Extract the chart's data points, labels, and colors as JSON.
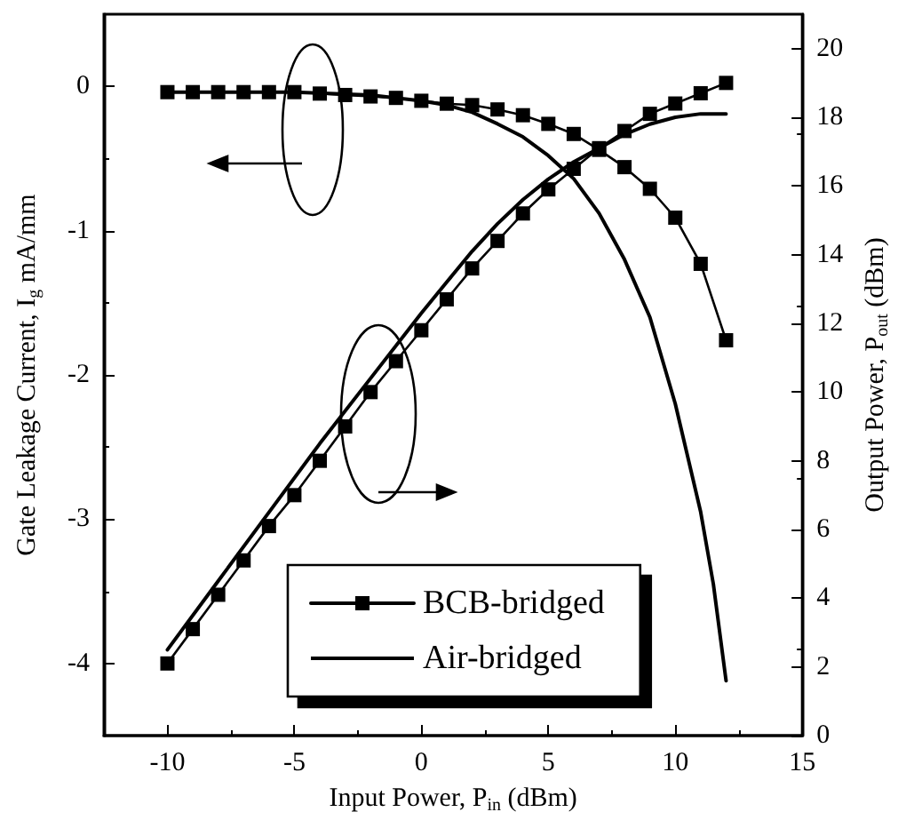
{
  "chart_data": {
    "type": "line",
    "xlabel": "Input Power, P$_{in}$ (dBm)",
    "ylabel": "Gate Leakage Current, I$_{g}$ mA/mm",
    "y2label": "Output Power, P$_{out}$ (dBm)",
    "xlim": [
      -12.5,
      15
    ],
    "xticks": [
      -10,
      -5,
      0,
      5,
      10,
      15
    ],
    "ylim": [
      -4.5,
      0.5
    ],
    "yticks": [
      -4,
      -3,
      -2,
      -1,
      0
    ],
    "y2lim": [
      0,
      21
    ],
    "y2ticks": [
      0,
      2,
      4,
      6,
      8,
      10,
      12,
      14,
      16,
      18,
      20
    ],
    "legend": "bottom",
    "grid": false,
    "line_style": "solid",
    "series": [
      {
        "name": "BCB-bridged",
        "color": "#000000",
        "marker": "square",
        "x": [
          -10,
          -9,
          -8,
          -7,
          -6,
          -5,
          -4,
          -3,
          -2,
          -1,
          0,
          1,
          2,
          3,
          4,
          5,
          6,
          7,
          8,
          9,
          10,
          11,
          12
        ],
        "values": [
          -0.04,
          -0.04,
          -0.04,
          -0.04,
          -0.04,
          -0.04,
          -0.05,
          -0.06,
          -0.07,
          -0.08,
          -0.1,
          -0.12,
          -0.13,
          -0.16,
          -0.2,
          -0.26,
          -0.33,
          -0.44,
          -0.56,
          -0.71,
          -0.91,
          -1.23,
          -1.76
        ]
      },
      {
        "name": "Air-bridged",
        "color": "#000000",
        "marker": "none",
        "x": [
          -10,
          -5,
          -2,
          0,
          1,
          2,
          3,
          4,
          5,
          6,
          7,
          8,
          9,
          10,
          11,
          11.5,
          12
        ],
        "values": [
          -0.04,
          -0.04,
          -0.06,
          -0.1,
          -0.13,
          -0.18,
          -0.26,
          -0.35,
          -0.48,
          -0.64,
          -0.88,
          -1.2,
          -1.6,
          -2.2,
          -2.95,
          -3.45,
          -4.12
        ]
      },
      {
        "color": "#000000",
        "marker": "square",
        "axis": "y2",
        "x": [
          -10,
          -9,
          -8,
          -7,
          -6,
          -5,
          -4,
          -3,
          -2,
          -1,
          0,
          1,
          2,
          3,
          4,
          5,
          6,
          7,
          8,
          9,
          10,
          11,
          12
        ],
        "values": [
          2.1,
          3.1,
          4.1,
          5.1,
          6.1,
          7.0,
          8.0,
          9.0,
          10.0,
          10.9,
          11.8,
          12.7,
          13.6,
          14.4,
          15.2,
          15.9,
          16.5,
          17.1,
          17.6,
          18.1,
          18.4,
          18.7,
          19.0
        ]
      },
      {
        "color": "#000000",
        "marker": "none",
        "axis": "y2",
        "x": [
          -10,
          -8,
          -6,
          -4,
          -2,
          0,
          1,
          2,
          3,
          4,
          5,
          6,
          7,
          8,
          9,
          10,
          11,
          12
        ],
        "values": [
          2.5,
          4.5,
          6.5,
          8.5,
          10.4,
          12.3,
          13.2,
          14.1,
          14.9,
          15.6,
          16.2,
          16.7,
          17.1,
          17.5,
          17.8,
          18.0,
          18.1,
          18.1
        ]
      }
    ]
  }
}
